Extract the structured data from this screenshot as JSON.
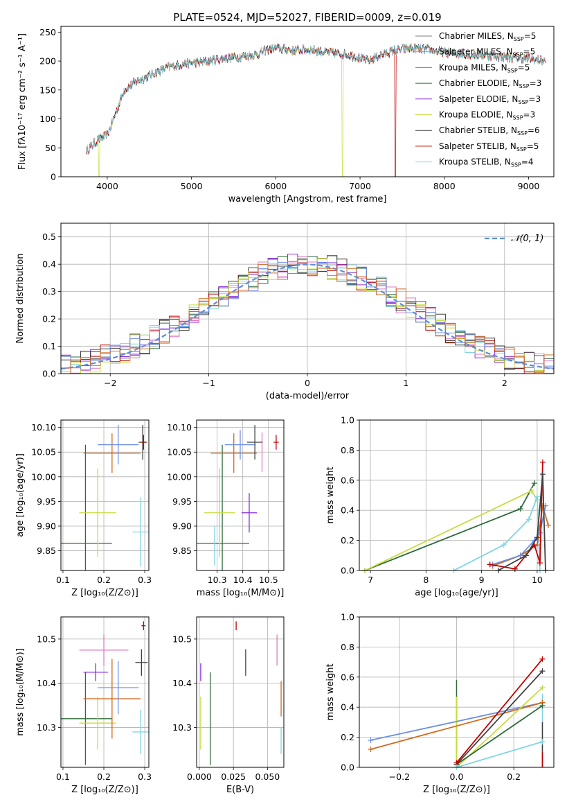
{
  "title": "PLATE=0524, MJD=52027, FIBERID=0009, z=0.019",
  "colors": {
    "Chabrier MILES": "#7f7f7f",
    "Salpeter MILES": "#6b8ee6",
    "Kroupa MILES": "#d2691e",
    "Chabrier ELODIE": "#2e6b3a",
    "Salpeter ELODIE": "#8a2be2",
    "Kroupa ELODIE": "#c8dc3c",
    "Chabrier STELIB": "#404040",
    "Salpeter STELIB": "#c00000",
    "Kroupa STELIB": "#7fd6e0",
    "pink": "#e377c2",
    "gaussian": "#5b8fd9"
  },
  "chart_data": [
    {
      "type": "line",
      "xlabel": "wavelength [Angstrom, rest frame]",
      "ylabel": "Flux [fλ10⁻¹⁷ erg cm⁻² s⁻¹ A⁻¹]",
      "xlim": [
        3450,
        9300
      ],
      "ylim": [
        0,
        260
      ],
      "xticks": [
        "4000",
        "5000",
        "6000",
        "7000",
        "8000",
        "9000"
      ],
      "yticks": [
        "0",
        "50",
        "100",
        "150",
        "200",
        "250"
      ],
      "legend_position": "upper right",
      "legend": [
        {
          "name": "Chabrier MILES",
          "nssp": "5"
        },
        {
          "name": "Salpeter MILES",
          "nssp": "5"
        },
        {
          "name": "Kroupa MILES",
          "nssp": "5"
        },
        {
          "name": "Chabrier ELODIE",
          "nssp": "3"
        },
        {
          "name": "Salpeter ELODIE",
          "nssp": "3"
        },
        {
          "name": "Kroupa ELODIE",
          "nssp": "3"
        },
        {
          "name": "Chabrier STELIB",
          "nssp": "6"
        },
        {
          "name": "Salpeter STELIB",
          "nssp": "5"
        },
        {
          "name": "Kroupa STELIB",
          "nssp": "4"
        }
      ],
      "continuum": {
        "x": [
          3750,
          3900,
          4000,
          4100,
          4200,
          4350,
          4500,
          4700,
          4900,
          5100,
          5200,
          5400,
          5600,
          5800,
          5900,
          6000,
          6200,
          6400,
          6600,
          6800,
          6900,
          7000,
          7100,
          7200,
          7400,
          7600,
          7800,
          8000,
          8200,
          8500,
          8800,
          9000,
          9200
        ],
        "y": [
          45,
          65,
          72,
          110,
          150,
          165,
          175,
          188,
          195,
          198,
          200,
          205,
          208,
          212,
          220,
          222,
          218,
          220,
          215,
          212,
          210,
          205,
          200,
          208,
          218,
          222,
          220,
          215,
          212,
          210,
          206,
          204,
          200
        ]
      },
      "dips": [
        {
          "x": 3905,
          "series": "Kroupa ELODIE"
        },
        {
          "x": 6790,
          "series": "Kroupa ELODIE"
        },
        {
          "x": 7420,
          "series": "Salpeter STELIB"
        }
      ]
    },
    {
      "type": "bar",
      "xlabel": "(data-model)/error",
      "ylabel": "Normed distribution",
      "xlim": [
        -2.5,
        2.5
      ],
      "ylim": [
        0,
        0.55
      ],
      "xticks": [
        "−2",
        "−1",
        "0",
        "1",
        "2"
      ],
      "yticks": [
        "0.0",
        "0.1",
        "0.2",
        "0.3",
        "0.4",
        "0.5"
      ],
      "legend": "𝒩(0, 1)",
      "bin_width": 0.1,
      "series_colors": [
        "#7fd6e0",
        "#2e6b3a",
        "#8a2be2",
        "#c00000",
        "#e377c2",
        "#404040",
        "#c8dc3c",
        "#6b8ee6",
        "#d2691e"
      ]
    },
    {
      "type": "scatter",
      "xlabel": "Z [log₁₀(Z/Z⊙)]",
      "ylabel": "age  [log₁₀(age/yr)]",
      "xlim": [
        0.095,
        0.31
      ],
      "ylim": [
        9.81,
        10.115
      ],
      "xticks": [
        "0.1",
        "0.2",
        "0.3"
      ],
      "yticks": [
        "9.85",
        "9.90",
        "9.95",
        "10.00",
        "10.05",
        "10.10"
      ],
      "points": [
        {
          "color": "#2e6b3a",
          "x": 0.155,
          "xerr": 0.065,
          "y": 9.865,
          "yerr": 0.2
        },
        {
          "color": "#c8dc3c",
          "x": 0.185,
          "xerr": 0.045,
          "y": 9.927,
          "yerr": 0.09
        },
        {
          "color": "#7fd6e0",
          "x": 0.29,
          "xerr": 0.02,
          "y": 9.888,
          "yerr": 0.07
        },
        {
          "color": "#d2691e",
          "x": 0.22,
          "xerr": 0.07,
          "y": 10.048,
          "yerr": 0.04
        },
        {
          "color": "#6b8ee6",
          "x": 0.235,
          "xerr": 0.05,
          "y": 10.065,
          "yerr": 0.04
        },
        {
          "color": "#404040",
          "x": 0.295,
          "xerr": 0.01,
          "y": 10.07,
          "yerr": 0.035
        },
        {
          "color": "#c00000",
          "x": 0.297,
          "xerr": 0.005,
          "y": 10.07,
          "yerr": 0.015
        }
      ]
    },
    {
      "type": "scatter",
      "xlabel": "mass [log₁₀(M/M⊙)]",
      "xlim": [
        10.22,
        10.56
      ],
      "ylim": [
        9.81,
        10.115
      ],
      "xticks": [
        "10.3",
        "10.4",
        "10.5"
      ],
      "yticks": [
        "9.85",
        "9.90",
        "9.95",
        "10.00",
        "10.05",
        "10.10"
      ],
      "points": [
        {
          "color": "#2e6b3a",
          "x": 10.32,
          "xerr": 0.105,
          "y": 9.865,
          "yerr": 0.2
        },
        {
          "color": "#c8dc3c",
          "x": 10.31,
          "xerr": 0.06,
          "y": 9.927,
          "yerr": 0.09
        },
        {
          "color": "#7fd6e0",
          "x": 10.29,
          "xerr": 0.0,
          "y": 9.86,
          "yerr": 0.04
        },
        {
          "color": "#8a2be2",
          "x": 10.425,
          "xerr": 0.03,
          "y": 9.927,
          "yerr": 0.04
        },
        {
          "color": "#d2691e",
          "x": 10.365,
          "xerr": 0.09,
          "y": 10.048,
          "yerr": 0.04
        },
        {
          "color": "#6b8ee6",
          "x": 10.39,
          "xerr": 0.06,
          "y": 10.065,
          "yerr": 0.03
        },
        {
          "color": "#e377c2",
          "x": 10.475,
          "xerr": 0.0,
          "y": 10.05,
          "yerr": 0.04
        },
        {
          "color": "#404040",
          "x": 10.447,
          "xerr": 0.03,
          "y": 10.07,
          "yerr": 0.035
        },
        {
          "color": "#c00000",
          "x": 10.53,
          "xerr": 0.01,
          "y": 10.07,
          "yerr": 0.015
        }
      ]
    },
    {
      "type": "line",
      "xlabel": "age  [log₁₀(age/yr)]",
      "ylabel": "mass weight",
      "xlim": [
        6.8,
        10.3
      ],
      "ylim": [
        0,
        1.0
      ],
      "xticks": [
        "7",
        "8",
        "9",
        "10"
      ],
      "yticks": [
        "0.0",
        "0.2",
        "0.4",
        "0.6",
        "0.8",
        "1.0"
      ],
      "series": [
        {
          "color": "#2e6b3a",
          "x": [
            6.9,
            9.7,
            9.95
          ],
          "y": [
            0.0,
            0.41,
            0.58
          ]
        },
        {
          "color": "#c8dc3c",
          "x": [
            6.9,
            9.9,
            10.0
          ],
          "y": [
            0.0,
            0.53,
            0.47
          ]
        },
        {
          "color": "#7fd6e0",
          "x": [
            8.5,
            9.4,
            9.85,
            10.0,
            10.05
          ],
          "y": [
            0.0,
            0.17,
            0.34,
            0.49,
            0.0
          ]
        },
        {
          "color": "#d2691e",
          "x": [
            9.2,
            9.7,
            10.0,
            10.1,
            10.2
          ],
          "y": [
            0.03,
            0.1,
            0.17,
            0.43,
            0.3
          ]
        },
        {
          "color": "#6b8ee6",
          "x": [
            9.2,
            9.7,
            9.95,
            10.05,
            10.15
          ],
          "y": [
            0.04,
            0.1,
            0.2,
            0.25,
            0.43
          ]
        },
        {
          "color": "#c00000",
          "x": [
            9.15,
            9.6,
            9.95,
            10.05,
            10.1
          ],
          "y": [
            0.04,
            0.01,
            0.17,
            0.05,
            0.72
          ]
        },
        {
          "color": "#404040",
          "x": [
            9.3,
            9.8,
            10.0,
            10.1,
            10.15
          ],
          "y": [
            0.0,
            0.1,
            0.22,
            0.64,
            0.0
          ]
        }
      ]
    },
    {
      "type": "scatter",
      "xlabel": "Z [log₁₀(Z/Z⊙)]",
      "ylabel": "mass [log₁₀(M/M⊙)]",
      "xlim": [
        0.095,
        0.31
      ],
      "ylim": [
        10.21,
        10.55
      ],
      "xticks": [
        "0.1",
        "0.2",
        "0.3"
      ],
      "yticks": [
        "10.3",
        "10.4",
        "10.5"
      ],
      "points": [
        {
          "color": "#2e6b3a",
          "x": 0.155,
          "xerr": 0.065,
          "y": 10.32,
          "yerr": 0.105
        },
        {
          "color": "#c8dc3c",
          "x": 0.185,
          "xerr": 0.045,
          "y": 10.31,
          "yerr": 0.06
        },
        {
          "color": "#7fd6e0",
          "x": 0.29,
          "xerr": 0.02,
          "y": 10.29,
          "yerr": 0.05
        },
        {
          "color": "#8a2be2",
          "x": 0.18,
          "xerr": 0.03,
          "y": 10.425,
          "yerr": 0.02
        },
        {
          "color": "#d2691e",
          "x": 0.22,
          "xerr": 0.07,
          "y": 10.365,
          "yerr": 0.09
        },
        {
          "color": "#6b8ee6",
          "x": 0.235,
          "xerr": 0.05,
          "y": 10.39,
          "yerr": 0.06
        },
        {
          "color": "#e377c2",
          "x": 0.2,
          "xerr": 0.06,
          "y": 10.475,
          "yerr": 0.035
        },
        {
          "color": "#404040",
          "x": 0.292,
          "xerr": 0.015,
          "y": 10.447,
          "yerr": 0.03
        },
        {
          "color": "#c00000",
          "x": 0.297,
          "xerr": 0.005,
          "y": 10.53,
          "yerr": 0.01
        }
      ]
    },
    {
      "type": "scatter",
      "xlabel": "E(B-V)",
      "xlim": [
        -0.002,
        0.062
      ],
      "ylim": [
        10.21,
        10.55
      ],
      "xticks": [
        "0.000",
        "0.025",
        "0.050"
      ],
      "yticks": [
        "10.3",
        "10.4",
        "10.5"
      ],
      "points": [
        {
          "color": "#2e6b3a",
          "x": 0.008,
          "xerr": 0,
          "y": 10.32,
          "yerr": 0.105
        },
        {
          "color": "#c8dc3c",
          "x": 0.001,
          "xerr": 0,
          "y": 10.31,
          "yerr": 0.06
        },
        {
          "color": "#8a2be2",
          "x": 0.001,
          "xerr": 0,
          "y": 10.425,
          "yerr": 0.02
        },
        {
          "color": "#404040",
          "x": 0.034,
          "xerr": 0,
          "y": 10.447,
          "yerr": 0.03
        },
        {
          "color": "#c00000",
          "x": 0.027,
          "xerr": 0,
          "y": 10.53,
          "yerr": 0.01
        },
        {
          "color": "#e377c2",
          "x": 0.057,
          "xerr": 0,
          "y": 10.475,
          "yerr": 0.035
        },
        {
          "color": "#d2691e",
          "x": 0.06,
          "xerr": 0,
          "y": 10.365,
          "yerr": 0.04
        },
        {
          "color": "#7fd6e0",
          "x": 0.06,
          "xerr": 0,
          "y": 10.27,
          "yerr": 0.03
        }
      ]
    },
    {
      "type": "line",
      "xlabel": "Z [log₁₀(Z/Z⊙)]",
      "ylabel": "mass weight",
      "xlim": [
        -0.34,
        0.34
      ],
      "ylim": [
        0,
        1.0
      ],
      "xticks": [
        "−0.2",
        "0.0",
        "0.2"
      ],
      "yticks": [
        "0.0",
        "0.2",
        "0.4",
        "0.6",
        "0.8",
        "1.0"
      ],
      "series": [
        {
          "color": "#6b8ee6",
          "x": [
            -0.3,
            0.3
          ],
          "y": [
            0.18,
            0.43
          ]
        },
        {
          "color": "#d2691e",
          "x": [
            -0.3,
            0.3
          ],
          "y": [
            0.12,
            0.43
          ]
        },
        {
          "color": "#c8dc3c",
          "x": [
            0.0,
            0.3
          ],
          "y": [
            0.0,
            0.53
          ]
        },
        {
          "color": "#2e6b3a",
          "x": [
            0.0,
            0.3
          ],
          "y": [
            0.02,
            0.41
          ]
        },
        {
          "color": "#404040",
          "x": [
            0.0,
            0.3
          ],
          "y": [
            0.02,
            0.64
          ]
        },
        {
          "color": "#c00000",
          "x": [
            0.0,
            0.3
          ],
          "y": [
            0.03,
            0.72
          ]
        },
        {
          "color": "#7fd6e0",
          "x": [
            0.0,
            0.3
          ],
          "y": [
            0.0,
            0.17
          ]
        }
      ],
      "verticals": [
        {
          "color": "#2e6b3a",
          "x": 0.0,
          "y0": 0.0,
          "y1": 0.58
        },
        {
          "color": "#c8dc3c",
          "x": 0.0,
          "y0": 0.0,
          "y1": 0.47
        },
        {
          "color": "#7fd6e0",
          "x": 0.3,
          "y0": 0.0,
          "y1": 0.49
        },
        {
          "color": "#404040",
          "x": 0.3,
          "y0": 0.0,
          "y1": 0.3
        },
        {
          "color": "#c00000",
          "x": 0.3,
          "y0": 0.0,
          "y1": 0.1
        }
      ]
    }
  ]
}
